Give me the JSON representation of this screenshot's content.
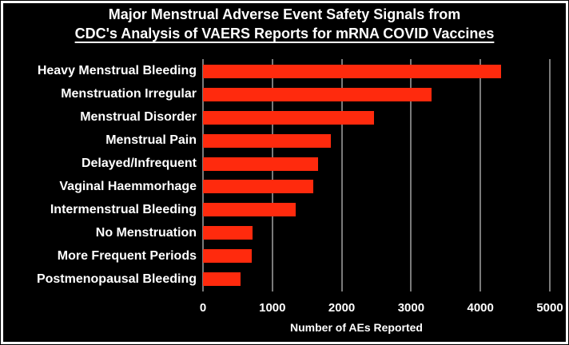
{
  "title": {
    "line1": "Major Menstrual Adverse Event Safety Signals from",
    "line2": "CDC's Analysis of VAERS Reports for mRNA COVID Vaccines"
  },
  "chart_data": {
    "type": "bar",
    "orientation": "horizontal",
    "title": "Major Menstrual Adverse Event Safety Signals from CDC's Analysis of VAERS Reports for mRNA COVID Vaccines",
    "categories": [
      "Heavy Menstrual Bleeding",
      "Menstruation Irregular",
      "Menstrual Disorder",
      "Menstrual Pain",
      "Delayed/Infrequent",
      "Vaginal Haemmorhage",
      "Intermenstrual Bleeding",
      "No Menstruation",
      "More Frequent Periods",
      "Postmenopausal Bleeding"
    ],
    "values": [
      4300,
      3300,
      2470,
      1840,
      1660,
      1590,
      1340,
      720,
      700,
      540
    ],
    "xlabel": "Number of AEs Reported",
    "ylabel": "",
    "xlim": [
      0,
      5000
    ],
    "xticks": [
      0,
      1000,
      2000,
      3000,
      4000,
      5000
    ],
    "grid": true,
    "legend": false,
    "colors": {
      "bar": "#ff2a0d",
      "background": "#000000",
      "text": "#ffffff",
      "gridline": "#7a7a7a",
      "frame_border": "#ffffff"
    }
  }
}
